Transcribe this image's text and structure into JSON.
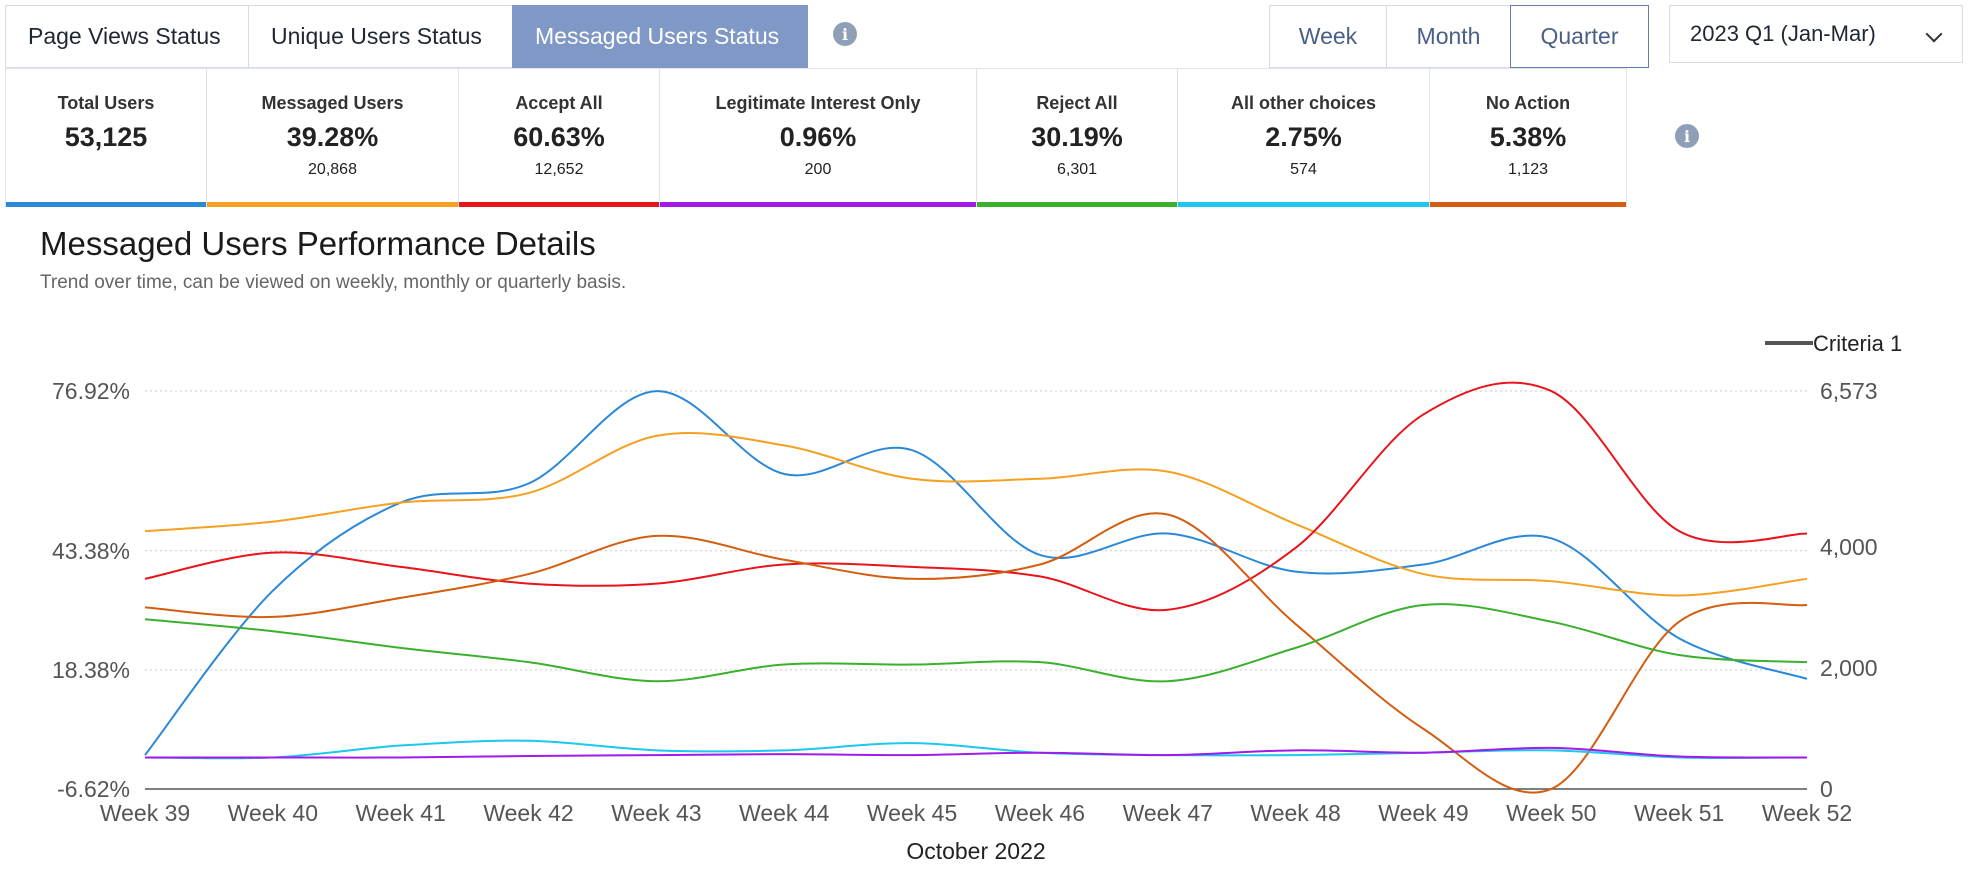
{
  "tabs": [
    {
      "label": "Page Views Status",
      "active": false
    },
    {
      "label": "Unique Users Status",
      "active": false
    },
    {
      "label": "Messaged Users Status",
      "active": true
    }
  ],
  "info_icon": "info-icon",
  "range_buttons": [
    {
      "label": "Week",
      "active": false
    },
    {
      "label": "Month",
      "active": false
    },
    {
      "label": "Quarter",
      "active": true
    }
  ],
  "period_select": {
    "value": "2023 Q1 (Jan-Mar)",
    "icon": "chevron-down-icon"
  },
  "cards": [
    {
      "label": "Total Users",
      "value": "53,125",
      "count": "",
      "color": "#2b88d8"
    },
    {
      "label": "Messaged Users",
      "value": "39.28%",
      "count": "20,868",
      "color": "#f5a020"
    },
    {
      "label": "Accept All",
      "value": "60.63%",
      "count": "12,652",
      "color": "#e8131b"
    },
    {
      "label": "Legitimate Interest Only",
      "value": "0.96%",
      "count": "200",
      "color": "#a01ae8"
    },
    {
      "label": "Reject All",
      "value": "30.19%",
      "count": "6,301",
      "color": "#3ab02c"
    },
    {
      "label": "All other choices",
      "value": "2.75%",
      "count": "574",
      "color": "#1cc8ee"
    },
    {
      "label": "No Action",
      "value": "5.38%",
      "count": "1,123",
      "color": "#d35d10"
    }
  ],
  "section": {
    "title": "Messaged Users Performance Details",
    "subtitle": "Trend over time, can be viewed on weekly, monthly or quarterly basis."
  },
  "chart_data": {
    "type": "line",
    "x": [
      "Week 39",
      "Week 40",
      "Week 41",
      "Week 42",
      "Week 43",
      "Week 44",
      "Week 45",
      "Week 46",
      "Week 47",
      "Week 48",
      "Week 49",
      "Week 50",
      "Week 51",
      "Week 52"
    ],
    "xlabel": "October 2022",
    "ylabel": "",
    "legend": [
      {
        "name": "Criteria 1",
        "color": "#555555"
      }
    ],
    "legend_position": "top-right",
    "left_axis": {
      "ticks": [
        "76.92%",
        "43.38%",
        "18.38%",
        "-6.62%"
      ],
      "tick_values": [
        76.92,
        43.38,
        18.38,
        -6.62
      ],
      "ylim": [
        -6.62,
        76.92
      ]
    },
    "right_axis": {
      "ticks": [
        "6,573",
        "4,000",
        "2,000",
        "0"
      ],
      "tick_values": [
        6573,
        4000,
        2000,
        0
      ],
      "ylim": [
        0,
        6573
      ]
    },
    "grid": true,
    "series": [
      {
        "color": "#2b88d8",
        "axis": "left",
        "values": [
          0.5,
          35.0,
          53.5,
          57.5,
          76.9,
          59.5,
          64.5,
          42.5,
          47.0,
          39.0,
          40.5,
          46.0,
          25.0,
          16.5
        ]
      },
      {
        "color": "#f5a020",
        "axis": "left",
        "values": [
          47.5,
          49.5,
          53.5,
          55.5,
          67.5,
          65.5,
          58.5,
          58.5,
          60.0,
          49.0,
          38.5,
          37.0,
          34.0,
          37.5
        ]
      },
      {
        "color": "#e8131b",
        "axis": "left",
        "values": [
          37.5,
          43.0,
          40.0,
          36.5,
          36.5,
          40.5,
          40.0,
          38.0,
          31.0,
          44.0,
          72.0,
          76.9,
          47.5,
          47.0
        ]
      },
      {
        "color": "#d35d10",
        "axis": "left",
        "values": [
          31.5,
          29.5,
          33.5,
          38.5,
          46.5,
          41.5,
          37.5,
          40.5,
          51.0,
          28.0,
          6.0,
          -6.6,
          28.5,
          32.0
        ]
      },
      {
        "color": "#3ab02c",
        "axis": "left",
        "values": [
          29.0,
          26.5,
          23.0,
          20.0,
          16.0,
          19.5,
          19.5,
          20.0,
          16.0,
          23.0,
          32.0,
          28.5,
          21.5,
          20.0
        ]
      },
      {
        "color": "#1cc8ee",
        "axis": "left",
        "values": [
          0.0,
          0.0,
          2.5,
          3.5,
          1.5,
          1.5,
          3.0,
          1.0,
          0.5,
          0.5,
          1.0,
          1.5,
          0.0,
          0.0
        ]
      },
      {
        "color": "#a01ae8",
        "axis": "left",
        "values": [
          0.0,
          0.0,
          0.0,
          0.3,
          0.5,
          0.7,
          0.5,
          1.0,
          0.5,
          1.5,
          1.0,
          2.0,
          0.2,
          0.0
        ]
      }
    ]
  }
}
